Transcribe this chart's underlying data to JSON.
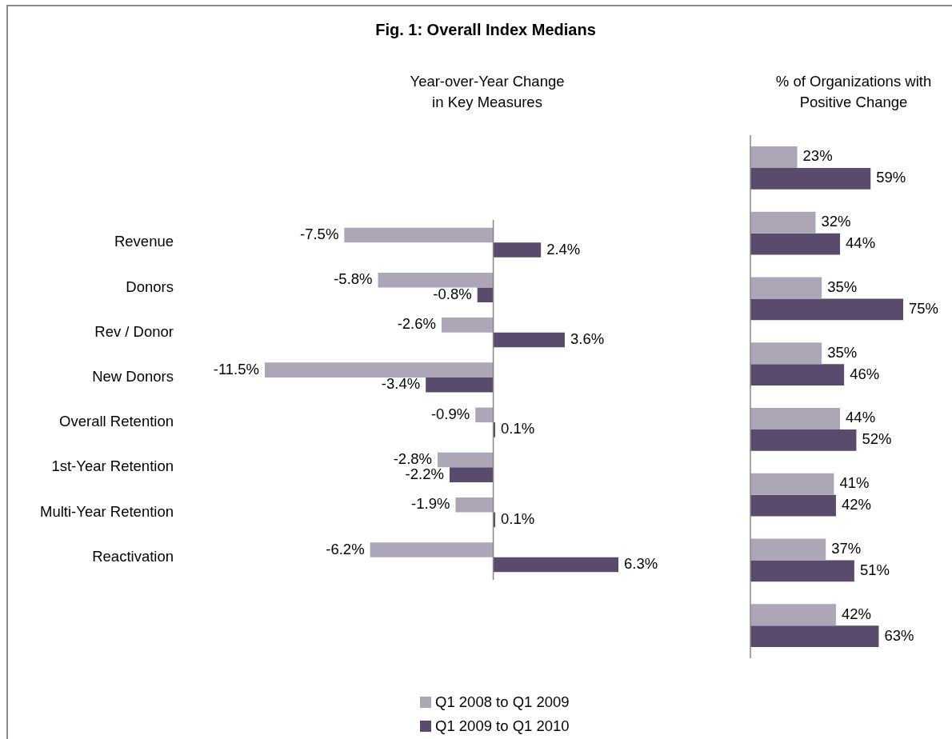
{
  "chart_data": [
    {
      "type": "bar",
      "orientation": "horizontal",
      "title": "Fig. 1: Overall Index Medians",
      "subtitle": "Year-over-Year Change\nin Key Measures",
      "categories": [
        "Revenue",
        "Donors",
        "Rev / Donor",
        "New Donors",
        "Overall Retention",
        "1st-Year Retention",
        "Multi-Year Retention",
        "Reactivation"
      ],
      "series": [
        {
          "name": "Q1 2008 to Q1 2009",
          "color": "#ada6b6",
          "values": [
            -7.5,
            -5.8,
            -2.6,
            -11.5,
            -0.9,
            -2.8,
            -1.9,
            -6.2
          ],
          "value_labels": [
            "-7.5%",
            "-5.8%",
            "-2.6%",
            "-11.5%",
            "-0.9%",
            "-2.8%",
            "-1.9%",
            "-6.2%"
          ]
        },
        {
          "name": "Q1 2009 to Q1 2010",
          "color": "#584b6b",
          "values": [
            2.4,
            -0.8,
            3.6,
            -3.4,
            0.1,
            -2.2,
            0.1,
            6.3
          ],
          "value_labels": [
            "2.4%",
            "-0.8%",
            "3.6%",
            "-3.4%",
            "0.1%",
            "-2.2%",
            "0.1%",
            "6.3%"
          ]
        }
      ],
      "tick_labels": "y",
      "legend": "bottom"
    },
    {
      "type": "bar",
      "orientation": "horizontal",
      "title": "% of Organizations with\nPositive Change",
      "categories": [
        null,
        null,
        null,
        null,
        null,
        null,
        null,
        null
      ],
      "series": [
        {
          "color": "#ada6b6",
          "values": [
            23,
            32,
            35,
            35,
            44,
            41,
            37,
            42
          ],
          "value_labels": [
            "23%",
            "32%",
            "35%",
            "35%",
            "44%",
            "41%",
            "37%",
            "42%"
          ]
        },
        {
          "color": "#584b6b",
          "values": [
            59,
            44,
            75,
            46,
            52,
            42,
            51,
            63
          ],
          "value_labels": [
            "59%",
            "44%",
            "75%",
            "46%",
            "52%",
            "42%",
            "51%",
            "63%"
          ]
        }
      ],
      "tick_labels": false
    }
  ]
}
